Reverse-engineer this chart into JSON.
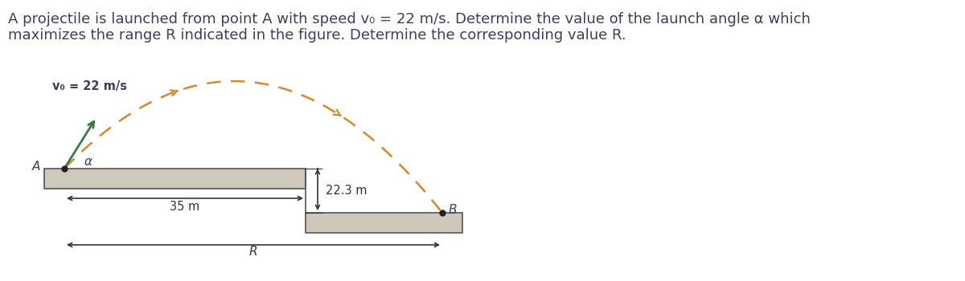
{
  "title_line1": "A projectile is launched from point A with speed v₀ = 22 m/s. Determine the value of the launch angle α which",
  "title_line2": "maximizes the range R indicated in the figure. Determine the corresponding value R.",
  "title_color": "#3d3d5c",
  "title_fontsize": 13.0,
  "bg_color": "#ffffff",
  "v0_label": "v₀ = 22 m/s",
  "v0_label_color": "#3d3d5c",
  "dist_35": "35 m",
  "dist_223": "22.3 m",
  "label_R": "R",
  "label_A": "A",
  "label_B": "B",
  "label_alpha": "α",
  "platform_color": "#cec8ba",
  "platform_edge_color": "#555555",
  "trajectory_color": "#d4882a",
  "launch_arrow_color": "#3a7a45",
  "dim_arrow_color": "#333333",
  "figure_width": 12.0,
  "figure_height": 3.5
}
